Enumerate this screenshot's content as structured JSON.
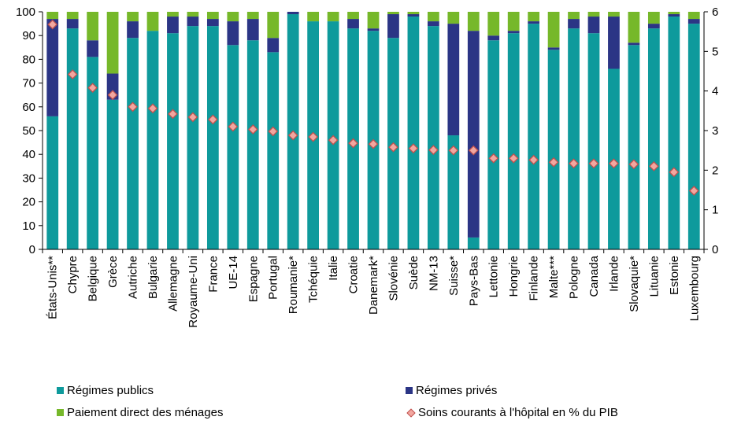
{
  "chart_data": {
    "type": "bar",
    "stacked": true,
    "categories": [
      "États-Unis**",
      "Chypre",
      "Belgique",
      "Grèce",
      "Autriche",
      "Bulgarie",
      "Allemagne",
      "Royaume-Uni",
      "France",
      "UE-14",
      "Espagne",
      "Portugal",
      "Roumanie*",
      "Tchéquie",
      "Italie",
      "Croatie",
      "Danemark*",
      "Slovénie",
      "Suède",
      "NM-13",
      "Suisse*",
      "Pays-Bas",
      "Lettonie",
      "Hongrie",
      "Finlande",
      "Malte***",
      "Pologne",
      "Canada",
      "Irlande",
      "Slovaquie*",
      "Lituanie",
      "Estonie",
      "Luxembourg"
    ],
    "series": [
      {
        "name": "Régimes publics",
        "axis": "left",
        "color": "#0e9a9c",
        "values": [
          56,
          93,
          81,
          63,
          89,
          92,
          91,
          94,
          94,
          86,
          88,
          83,
          99,
          96,
          96,
          93,
          92,
          89,
          98,
          94,
          48,
          5,
          88,
          91,
          95,
          84,
          93,
          91,
          76,
          86,
          93,
          98,
          95
        ]
      },
      {
        "name": "Régimes privés",
        "axis": "left",
        "color": "#2b3585",
        "values": [
          41,
          4,
          7,
          11,
          7,
          0,
          7,
          4,
          3,
          10,
          9,
          6,
          1,
          0,
          0,
          4,
          1,
          10,
          1,
          2,
          47,
          87,
          2,
          1,
          1,
          1,
          4,
          7,
          22,
          1,
          2,
          1,
          2
        ]
      },
      {
        "name": "Paiement direct des ménages",
        "axis": "left",
        "color": "#76b82a",
        "values": [
          3,
          3,
          12,
          26,
          4,
          8,
          2,
          2,
          3,
          4,
          3,
          11,
          0,
          4,
          4,
          3,
          7,
          1,
          1,
          4,
          5,
          8,
          10,
          8,
          4,
          15,
          3,
          2,
          2,
          13,
          5,
          1,
          3
        ]
      },
      {
        "name": "Soins courants à l'hôpital en % du PIB",
        "axis": "right",
        "type": "scatter",
        "marker": "diamond",
        "color": "#f2a7a0",
        "values": [
          5.68,
          4.42,
          4.08,
          3.9,
          3.6,
          3.56,
          3.42,
          3.34,
          3.28,
          3.1,
          3.03,
          2.98,
          2.88,
          2.84,
          2.76,
          2.68,
          2.66,
          2.58,
          2.55,
          2.51,
          2.5,
          2.5,
          2.3,
          2.3,
          2.26,
          2.2,
          2.17,
          2.17,
          2.17,
          2.15,
          2.1,
          1.95,
          1.48
        ]
      }
    ],
    "yaxis_left": {
      "min": 0,
      "max": 100,
      "step": 10
    },
    "yaxis_right": {
      "min": 0,
      "max": 6,
      "step": 1
    },
    "grid": false,
    "legend_position": "bottom",
    "title": "",
    "xlabel": "",
    "ylabel": ""
  }
}
